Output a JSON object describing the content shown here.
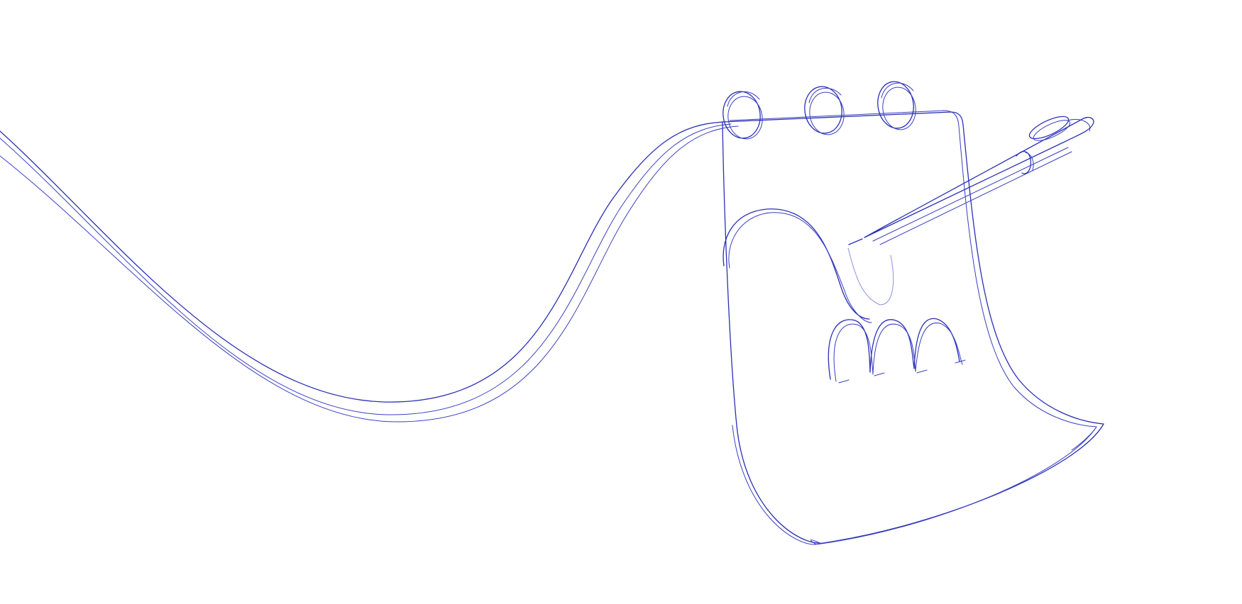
{
  "illustration": {
    "subject": "notebook-pencil-line-drawing",
    "stroke_color": "#2a2fb5",
    "background_color": "#ffffff"
  }
}
